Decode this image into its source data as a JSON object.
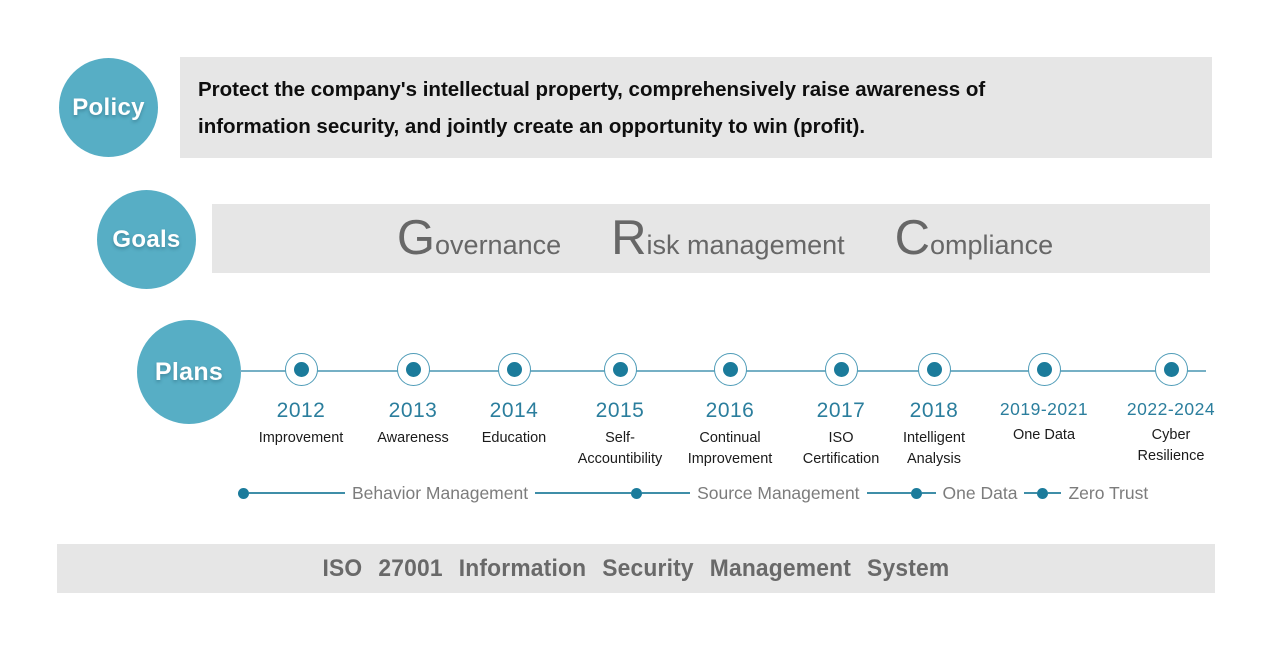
{
  "policy": {
    "label": "Policy",
    "text": "Protect the company's intellectual property, comprehensively raise awareness of\ninformation security, and jointly create an opportunity to win (profit)."
  },
  "goals": {
    "label": "Goals",
    "items": [
      {
        "initial": "G",
        "rest": "overnance"
      },
      {
        "initial": "R",
        "rest": "isk management"
      },
      {
        "initial": "C",
        "rest": "ompliance"
      }
    ]
  },
  "plans": {
    "label": "Plans",
    "milestones": [
      {
        "year": "2012",
        "label": "Improvement"
      },
      {
        "year": "2013",
        "label": "Awareness"
      },
      {
        "year": "2014",
        "label": "Education"
      },
      {
        "year": "2015",
        "label": "Self-\nAccountibility"
      },
      {
        "year": "2016",
        "label": "Continual\nImprovement"
      },
      {
        "year": "2017",
        "label": "ISO\nCertification"
      },
      {
        "year": "2018",
        "label": "Intelligent\nAnalysis"
      },
      {
        "year": "2019-2021",
        "label": "One Data"
      },
      {
        "year": "2022-2024",
        "label": "Cyber\nResilience"
      }
    ],
    "phases": [
      "Behavior Management",
      "Source Management",
      "One Data",
      "Zero Trust"
    ]
  },
  "footer": {
    "text": "ISO 27001  Information  Security  Management  System"
  },
  "colors": {
    "bubble_teal": "#57aec5",
    "node_dark_teal": "#1b7b9b",
    "year_teal": "#2b7e9d",
    "line_teal": "#4f9cb8",
    "panel_gray": "#e6e6e6",
    "goals_text_gray": "#676767",
    "phase_text_gray": "#7c7c7c",
    "footer_text_gray": "#696969"
  }
}
